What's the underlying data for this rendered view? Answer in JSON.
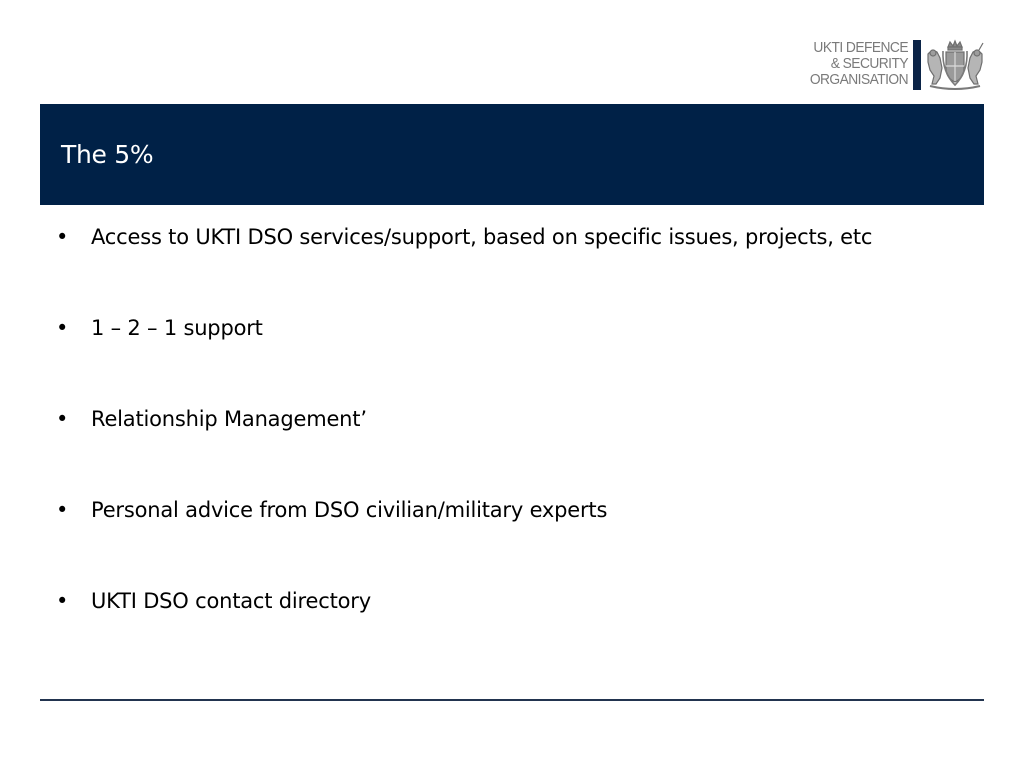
{
  "logo": {
    "lines": [
      "UKTI DEFENCE",
      "& SECURITY",
      "ORGANISATION"
    ],
    "crest_icon": "royal-coat-of-arms-icon"
  },
  "header": {
    "title": "The 5%"
  },
  "bullets": [
    "Access to UKTI DSO services/support, based on specific issues, projects, etc",
    "1 – 2 – 1 support",
    "Relationship Management’",
    "Personal advice from DSO civilian/military experts",
    "UKTI DSO contact directory"
  ],
  "bullet_glyph": "•",
  "colors": {
    "title_band": "#002147",
    "logo_bar": "#0b2447",
    "logo_text": "#7a7a7a",
    "footer_rule": "#22344f"
  }
}
